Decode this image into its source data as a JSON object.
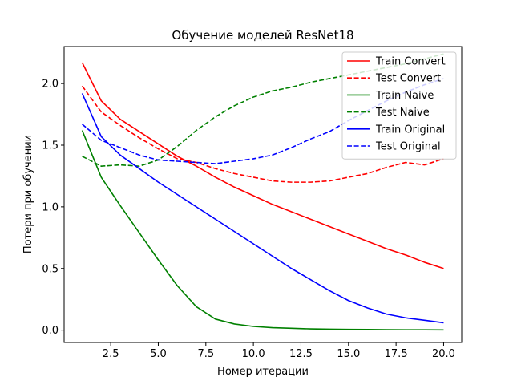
{
  "chart_data": {
    "type": "line",
    "title": "Обучение моделей ResNet18",
    "xlabel": "Номер итерации",
    "ylabel": "Потери при обучении",
    "xlim": [
      0.05,
      20.95
    ],
    "ylim": [
      -0.1,
      2.3
    ],
    "xticks": [
      2.5,
      5.0,
      7.5,
      10.0,
      12.5,
      15.0,
      17.5,
      20.0
    ],
    "xtick_labels": [
      "2.5",
      "5.0",
      "7.5",
      "10.0",
      "12.5",
      "15.0",
      "17.5",
      "20.0"
    ],
    "yticks": [
      0.0,
      0.5,
      1.0,
      1.5,
      2.0
    ],
    "ytick_labels": [
      "0.0",
      "0.5",
      "1.0",
      "1.5",
      "2.0"
    ],
    "grid": false,
    "legend_position": "top-right",
    "x": [
      1,
      2,
      3,
      4,
      5,
      6,
      7,
      8,
      9,
      10,
      11,
      12,
      13,
      14,
      15,
      16,
      17,
      18,
      19,
      20
    ],
    "series": [
      {
        "name": "Train Convert",
        "color": "#ff0000",
        "dash": "solid",
        "values": [
          2.17,
          1.86,
          1.71,
          1.61,
          1.51,
          1.41,
          1.33,
          1.24,
          1.16,
          1.09,
          1.02,
          0.96,
          0.9,
          0.84,
          0.78,
          0.72,
          0.66,
          0.61,
          0.55,
          0.5
        ]
      },
      {
        "name": "Test Convert",
        "color": "#ff0000",
        "dash": "dashed",
        "values": [
          1.98,
          1.77,
          1.66,
          1.56,
          1.47,
          1.39,
          1.36,
          1.31,
          1.27,
          1.24,
          1.21,
          1.2,
          1.2,
          1.21,
          1.24,
          1.27,
          1.32,
          1.36,
          1.34,
          1.39
        ]
      },
      {
        "name": "Train Naive",
        "color": "#008000",
        "dash": "solid",
        "values": [
          1.62,
          1.24,
          1.01,
          0.79,
          0.57,
          0.36,
          0.19,
          0.09,
          0.05,
          0.03,
          0.02,
          0.015,
          0.01,
          0.008,
          0.006,
          0.005,
          0.004,
          0.003,
          0.003,
          0.002
        ]
      },
      {
        "name": "Test Naive",
        "color": "#008000",
        "dash": "dashed",
        "values": [
          1.41,
          1.33,
          1.34,
          1.33,
          1.38,
          1.49,
          1.62,
          1.73,
          1.82,
          1.89,
          1.94,
          1.97,
          2.01,
          2.04,
          2.07,
          2.1,
          2.13,
          2.16,
          2.2,
          2.24
        ]
      },
      {
        "name": "Train Original",
        "color": "#0000ff",
        "dash": "solid",
        "values": [
          1.92,
          1.57,
          1.42,
          1.31,
          1.2,
          1.1,
          1.0,
          0.9,
          0.8,
          0.7,
          0.6,
          0.5,
          0.41,
          0.32,
          0.24,
          0.18,
          0.13,
          0.1,
          0.08,
          0.06
        ]
      },
      {
        "name": "Test Original",
        "color": "#0000ff",
        "dash": "dashed",
        "values": [
          1.67,
          1.54,
          1.48,
          1.42,
          1.38,
          1.37,
          1.36,
          1.35,
          1.37,
          1.39,
          1.42,
          1.48,
          1.55,
          1.61,
          1.7,
          1.78,
          1.86,
          1.93,
          1.99,
          2.04
        ]
      }
    ]
  }
}
